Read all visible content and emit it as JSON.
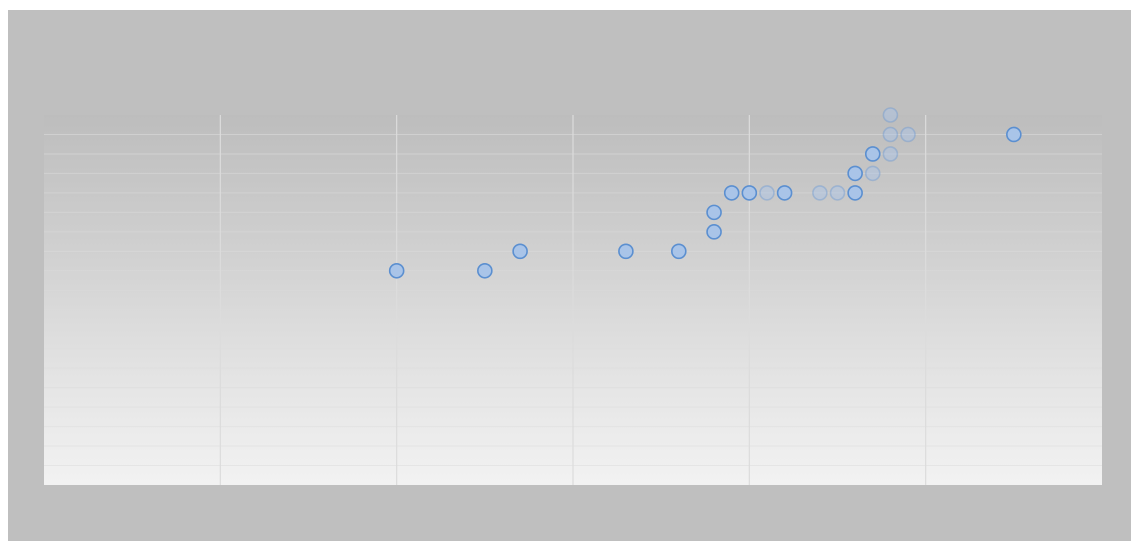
{
  "chart_data": {
    "type": "scatter",
    "title": "",
    "xlabel": "",
    "ylabel": "",
    "xlim": [
      0,
      6
    ],
    "ylim": [
      0,
      19
    ],
    "grid": true,
    "colors": {
      "marker_fill": "#a9c4e8",
      "marker_stroke": "#5b8fd0",
      "frame_background": "#bfbfbf",
      "grid_line": "#dcdcdc"
    },
    "series": [
      {
        "points": [
          {
            "x": 2.0,
            "y": 11
          },
          {
            "x": 2.5,
            "y": 11
          },
          {
            "x": 2.7,
            "y": 12
          },
          {
            "x": 3.3,
            "y": 12
          },
          {
            "x": 3.6,
            "y": 12
          },
          {
            "x": 3.8,
            "y": 13
          },
          {
            "x": 3.8,
            "y": 14
          },
          {
            "x": 3.9,
            "y": 15
          },
          {
            "x": 4.0,
            "y": 15
          },
          {
            "x": 4.1,
            "y": 15,
            "faded": true
          },
          {
            "x": 4.2,
            "y": 15
          },
          {
            "x": 4.4,
            "y": 15,
            "faded": true
          },
          {
            "x": 4.5,
            "y": 15,
            "faded": true
          },
          {
            "x": 4.6,
            "y": 15
          },
          {
            "x": 4.6,
            "y": 16
          },
          {
            "x": 4.7,
            "y": 16,
            "faded": true
          },
          {
            "x": 4.7,
            "y": 17
          },
          {
            "x": 4.8,
            "y": 17,
            "faded": true
          },
          {
            "x": 4.8,
            "y": 18,
            "faded": true
          },
          {
            "x": 4.8,
            "y": 19,
            "faded": true
          },
          {
            "x": 4.9,
            "y": 18,
            "faded": true
          },
          {
            "x": 5.5,
            "y": 18
          }
        ]
      }
    ]
  }
}
